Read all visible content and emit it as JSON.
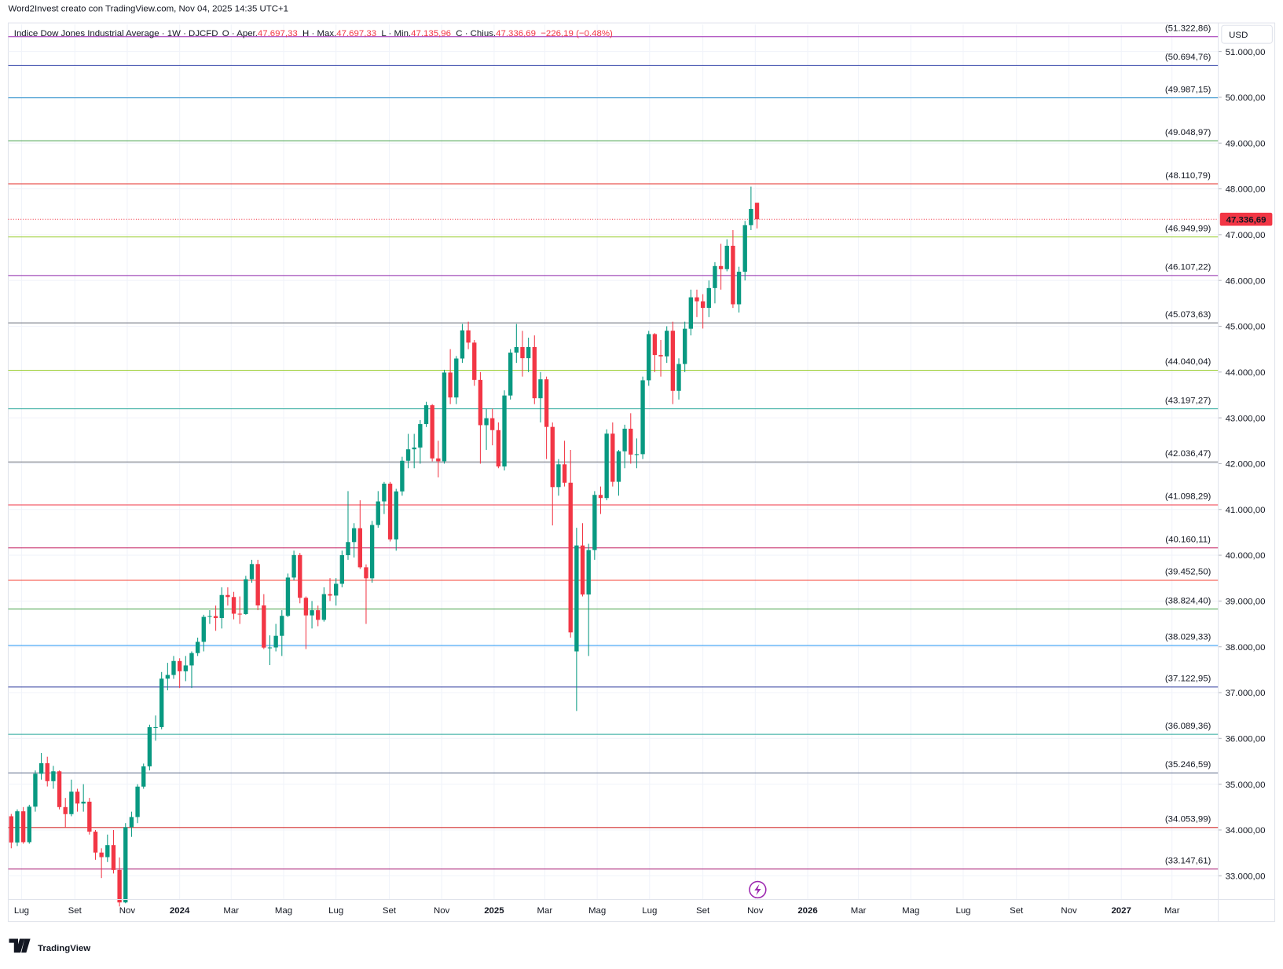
{
  "header": "Word2Invest creato con TradingView.com, Nov 04, 2025 14:35 UTC+1",
  "brand": "TradingView",
  "legend": {
    "symbol": "Indice Dow Jones Industrial Average · 1W · DJCFD",
    "open_label": "O · Aper.",
    "open": "47.697,33",
    "high_label": "H · Max.",
    "high": "47.697,33",
    "low_label": "L · Min.",
    "low": "47.135,96",
    "close_label": "C · Chius.",
    "close": "47.336,69",
    "change": "−226,19 (−0.48%)"
  },
  "chart_data": {
    "type": "candlestick",
    "currency": "USD",
    "up_color": "#089981",
    "down_color": "#f23645",
    "open": [
      34300,
      33727,
      34408,
      33734,
      34509,
      35228,
      35459,
      35066,
      35281,
      34500,
      34346,
      34837,
      34577,
      34618,
      33963,
      33507,
      33407,
      33670,
      33127,
      32418,
      34061,
      34283,
      34947,
      35390,
      36245,
      36247,
      37305,
      37385,
      37690,
      37466,
      37593,
      37863,
      38109,
      38654,
      38671,
      38628,
      39131,
      39087,
      38723,
      38715,
      39476,
      39807,
      38904,
      37983,
      37986,
      38240,
      38676,
      39513,
      40004,
      39070,
      38686,
      38799,
      38589,
      39150,
      39119,
      39376,
      40001,
      40288,
      40590,
      39737,
      39497,
      40660,
      41175,
      41563,
      40345,
      41394,
      42063,
      42313,
      42352,
      42864,
      43275,
      42114,
      42052,
      43989,
      43445,
      44296,
      44911,
      44643,
      43828,
      42840,
      42992,
      42732,
      41938,
      43488,
      44424,
      44545,
      44303,
      44546,
      43428,
      43841,
      42802,
      41488,
      41985,
      41583,
      37900,
      40213,
      39142,
      40114,
      41317,
      41249,
      42655,
      41603,
      42270,
      42763,
      42198,
      42207,
      43819,
      44829,
      44372,
      44342,
      44902,
      43589,
      44176,
      44946,
      45632,
      45545,
      45401,
      45834,
      46315,
      46247,
      46758,
      45480,
      46191,
      47207,
      47697.33
    ],
    "high": [
      34350,
      34450,
      34500,
      34550,
      35300,
      35680,
      35600,
      35400,
      35300,
      34700,
      35100,
      34900,
      35000,
      34700,
      34000,
      33600,
      33900,
      34000,
      33400,
      34150,
      34400,
      35000,
      35450,
      36300,
      36500,
      37450,
      37650,
      37800,
      37750,
      37800,
      37900,
      38200,
      38700,
      38800,
      38900,
      39300,
      39300,
      39200,
      39100,
      39550,
      39900,
      39900,
      39150,
      38250,
      38500,
      38800,
      39600,
      40100,
      40050,
      39100,
      39000,
      38900,
      39300,
      39500,
      39500,
      40100,
      41400,
      40700,
      41200,
      39800,
      40750,
      41400,
      41600,
      41600,
      41450,
      42150,
      42650,
      42650,
      42950,
      43350,
      43300,
      42500,
      44050,
      44500,
      44350,
      45050,
      45100,
      44700,
      44000,
      43200,
      43200,
      42900,
      43600,
      44500,
      45050,
      44900,
      44750,
      44800,
      44000,
      43900,
      42900,
      42100,
      42500,
      42300,
      40600,
      40700,
      40250,
      41400,
      41500,
      42750,
      42900,
      42300,
      42850,
      43100,
      42550,
      43900,
      44900,
      44850,
      44700,
      45000,
      45100,
      44300,
      45100,
      45800,
      45800,
      45700,
      46000,
      46400,
      46800,
      46900,
      47100,
      46300,
      47300,
      48050,
      47697.33
    ],
    "low": [
      33600,
      33650,
      33700,
      33700,
      34400,
      35100,
      34950,
      34900,
      34450,
      34050,
      34300,
      34400,
      34400,
      33900,
      33350,
      32950,
      33300,
      33050,
      32330,
      32400,
      33850,
      34150,
      34900,
      35300,
      35950,
      36200,
      37050,
      37300,
      37100,
      37250,
      37100,
      37800,
      37900,
      38500,
      38350,
      38400,
      38900,
      38600,
      38500,
      38700,
      39400,
      38800,
      37950,
      37600,
      37900,
      37800,
      38650,
      39450,
      38950,
      37950,
      38400,
      38450,
      38550,
      39000,
      38900,
      39300,
      39900,
      39950,
      39700,
      38500,
      39400,
      40600,
      40900,
      40300,
      40100,
      41300,
      41900,
      41900,
      42000,
      42800,
      42050,
      41700,
      42000,
      43300,
      43300,
      44200,
      44500,
      43700,
      42000,
      42300,
      42400,
      41900,
      41850,
      43400,
      44200,
      43900,
      44000,
      43300,
      42900,
      42100,
      40650,
      41300,
      41500,
      38200,
      36600,
      39100,
      37800,
      39900,
      40900,
      41200,
      41500,
      41300,
      41900,
      42000,
      41900,
      42100,
      43700,
      44000,
      43900,
      44200,
      43300,
      43400,
      44000,
      44800,
      45200,
      44950,
      45200,
      45500,
      45800,
      46200,
      45400,
      45300,
      46000,
      47100,
      47135.96
    ],
    "close": [
      33727,
      34408,
      33734,
      34509,
      35228,
      35459,
      35066,
      35281,
      34500,
      34346,
      34837,
      34577,
      34618,
      33963,
      33507,
      33407,
      33670,
      33127,
      32418,
      34061,
      34283,
      34947,
      35390,
      36245,
      36247,
      37305,
      37385,
      37690,
      37466,
      37593,
      37863,
      38109,
      38654,
      38671,
      38628,
      39131,
      39087,
      38723,
      38715,
      39476,
      39807,
      38904,
      37983,
      37986,
      38240,
      38676,
      39513,
      40004,
      39070,
      38686,
      38799,
      38589,
      39150,
      39119,
      39376,
      40001,
      40288,
      40590,
      39737,
      39497,
      40660,
      41175,
      41563,
      40345,
      41394,
      42063,
      42313,
      42352,
      42864,
      43275,
      42114,
      42052,
      43989,
      43445,
      44296,
      44911,
      44643,
      43828,
      42840,
      42992,
      42732,
      41938,
      43488,
      44424,
      44545,
      44303,
      44546,
      43428,
      43841,
      42802,
      41488,
      41985,
      41583,
      38315,
      40213,
      39142,
      40114,
      41317,
      41249,
      42655,
      41603,
      42270,
      42763,
      42198,
      42207,
      43819,
      44829,
      44372,
      44342,
      44902,
      43589,
      44176,
      44946,
      45632,
      45545,
      45401,
      45834,
      46315,
      46247,
      46758,
      45480,
      46191,
      47207,
      47563,
      47336.69
    ],
    "last_price": {
      "value": 47336.69,
      "label": "47.336,69"
    },
    "levels": {
      "values": [
        51322.86,
        50694.76,
        49987.15,
        49048.97,
        48110.79,
        46949.99,
        46107.22,
        45073.63,
        44040.04,
        43197.27,
        42036.47,
        41098.29,
        40160.11,
        39452.5,
        38824.4,
        38029.33,
        37122.95,
        36089.36,
        35246.59,
        34053.99,
        33147.61
      ],
      "value_labels": [
        "(51.322,86)",
        "(50.694,76)",
        "(49.987,15)",
        "(49.048,97)",
        "(48.110,79)",
        "(46.949,99)",
        "(46.107,22)",
        "(45.073,63)",
        "(44.040,04)",
        "(43.197,27)",
        "(42.036,47)",
        "(41.098,29)",
        "(40.160,11)",
        "(39.452,50)",
        "(38.824,40)",
        "(38.029,33)",
        "(37.122,95)",
        "(36.089,36)",
        "(35.246,59)",
        "(34.053,99)",
        "(33.147,61)"
      ],
      "colors": [
        "#9c27b0",
        "#3949ab",
        "#1e88c9",
        "#43a047",
        "#e53935",
        "#9acd32",
        "#8e24aa",
        "#787b86",
        "#9acd32",
        "#26a69a",
        "#787b86",
        "#f23645",
        "#c2185b",
        "#f44336",
        "#43a047",
        "#2196f3",
        "#303f9f",
        "#26a69a",
        "#5d6b8a",
        "#d32f2f",
        "#b03080"
      ]
    },
    "ylim": [
      32482,
      51589
    ],
    "yticks": [
      {
        "value": 33000,
        "label": "33.000,00"
      },
      {
        "value": 34000,
        "label": "34.000,00"
      },
      {
        "value": 35000,
        "label": "35.000,00"
      },
      {
        "value": 36000,
        "label": "36.000,00"
      },
      {
        "value": 37000,
        "label": "37.000,00"
      },
      {
        "value": 38000,
        "label": "38.000,00"
      },
      {
        "value": 39000,
        "label": "39.000,00"
      },
      {
        "value": 40000,
        "label": "40.000,00"
      },
      {
        "value": 41000,
        "label": "41.000,00"
      },
      {
        "value": 42000,
        "label": "42.000,00"
      },
      {
        "value": 43000,
        "label": "43.000,00"
      },
      {
        "value": 44000,
        "label": "44.000,00"
      },
      {
        "value": 45000,
        "label": "45.000,00"
      },
      {
        "value": 46000,
        "label": "46.000,00"
      },
      {
        "value": 47000,
        "label": "47.000,00"
      },
      {
        "value": 48000,
        "label": "48.000,00"
      },
      {
        "value": 49000,
        "label": "49.000,00"
      },
      {
        "value": 50000,
        "label": "50.000,00"
      },
      {
        "value": 51000,
        "label": "51.000,00"
      }
    ],
    "xlim": [
      -0.5,
      200.7
    ],
    "xticks": [
      {
        "value": 1.71,
        "label": "Lug"
      },
      {
        "value": 10.57,
        "label": "Set"
      },
      {
        "value": 19.29,
        "label": "Nov"
      },
      {
        "value": 28.0,
        "label": "2024"
      },
      {
        "value": 36.57,
        "label": "Mar"
      },
      {
        "value": 45.29,
        "label": "Mag"
      },
      {
        "value": 54.0,
        "label": "Lug"
      },
      {
        "value": 62.86,
        "label": "Set"
      },
      {
        "value": 71.57,
        "label": "Nov"
      },
      {
        "value": 80.29,
        "label": "2025"
      },
      {
        "value": 88.71,
        "label": "Mar"
      },
      {
        "value": 97.43,
        "label": "Mag"
      },
      {
        "value": 106.14,
        "label": "Lug"
      },
      {
        "value": 115.0,
        "label": "Set"
      },
      {
        "value": 123.71,
        "label": "Nov"
      },
      {
        "value": 132.43,
        "label": "2026"
      },
      {
        "value": 140.86,
        "label": "Mar"
      },
      {
        "value": 149.57,
        "label": "Mag"
      },
      {
        "value": 158.29,
        "label": "Lug"
      },
      {
        "value": 167.14,
        "label": "Set"
      },
      {
        "value": 175.86,
        "label": "Nov"
      },
      {
        "value": 184.57,
        "label": "2027"
      },
      {
        "value": 193.0,
        "label": "Mar"
      }
    ],
    "grid": true
  }
}
